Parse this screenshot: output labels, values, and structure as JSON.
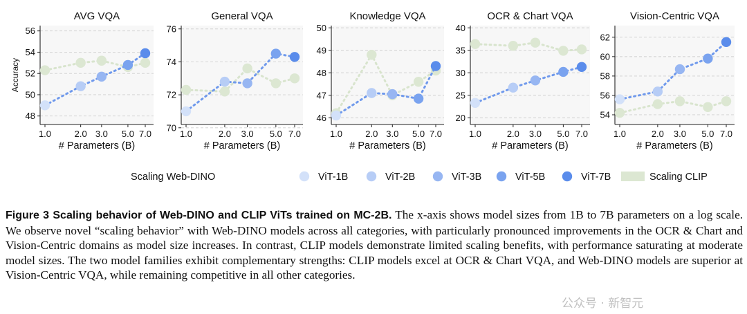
{
  "chart_data": [
    {
      "type": "scatter",
      "title": "AVG VQA",
      "xlabel": "# Parameters (B)",
      "ylabel": "Accuracy",
      "xscale": "log",
      "xticks": [
        "1.0",
        "2.0",
        "3.0",
        "5.0",
        "7.0"
      ],
      "ylim": [
        47.2,
        56.5
      ],
      "yticks": [
        "48",
        "50",
        "52",
        "54",
        "56"
      ],
      "grid": true,
      "series": [
        {
          "name": "Scaling Web-DINO",
          "x": [
            1,
            2,
            3,
            5,
            7
          ],
          "values": [
            49.0,
            50.8,
            51.7,
            52.8,
            53.9
          ]
        },
        {
          "name": "Scaling CLIP",
          "x": [
            1,
            2,
            3,
            5,
            7
          ],
          "values": [
            52.3,
            53.0,
            53.2,
            52.6,
            53.0
          ]
        }
      ]
    },
    {
      "type": "scatter",
      "title": "General VQA",
      "xlabel": "# Parameters (B)",
      "ylabel": "",
      "xscale": "log",
      "xticks": [
        "1.0",
        "2.0",
        "3.0",
        "5.0",
        "7.0"
      ],
      "ylim": [
        70.2,
        76.2
      ],
      "yticks": [
        "70",
        "72",
        "74",
        "76"
      ],
      "grid": true,
      "series": [
        {
          "name": "Scaling Web-DINO",
          "x": [
            1,
            2,
            3,
            5,
            7
          ],
          "values": [
            71.0,
            72.8,
            72.7,
            74.5,
            74.3
          ]
        },
        {
          "name": "Scaling CLIP",
          "x": [
            1,
            2,
            3,
            5,
            7
          ],
          "values": [
            72.3,
            72.2,
            73.6,
            72.7,
            73.0
          ]
        }
      ]
    },
    {
      "type": "scatter",
      "title": "Knowledge VQA",
      "xlabel": "# Parameters (B)",
      "ylabel": "",
      "xscale": "log",
      "xticks": [
        "1.0",
        "2.0",
        "3.0",
        "5.0",
        "7.0"
      ],
      "ylim": [
        45.7,
        50.1
      ],
      "yticks": [
        "46",
        "47",
        "48",
        "49",
        "50"
      ],
      "grid": true,
      "series": [
        {
          "name": "Scaling Web-DINO",
          "x": [
            1,
            2,
            3,
            5,
            7
          ],
          "values": [
            46.1,
            47.1,
            47.05,
            46.85,
            48.3
          ]
        },
        {
          "name": "Scaling CLIP",
          "x": [
            1,
            2,
            3,
            5,
            7
          ],
          "values": [
            46.2,
            48.8,
            47.0,
            47.6,
            48.1
          ]
        }
      ]
    },
    {
      "type": "scatter",
      "title": "OCR & Chart VQA",
      "xlabel": "# Parameters (B)",
      "ylabel": "",
      "xscale": "log",
      "xticks": [
        "1.0",
        "2.0",
        "3.0",
        "5.0",
        "7.0"
      ],
      "ylim": [
        18.5,
        40.5
      ],
      "yticks": [
        "20",
        "25",
        "30",
        "35",
        "40"
      ],
      "grid": true,
      "series": [
        {
          "name": "Scaling Web-DINO",
          "x": [
            1,
            2,
            3,
            5,
            7
          ],
          "values": [
            23.3,
            26.7,
            28.3,
            30.2,
            31.3
          ]
        },
        {
          "name": "Scaling CLIP",
          "x": [
            1,
            2,
            3,
            5,
            7
          ],
          "values": [
            36.4,
            36.0,
            36.7,
            34.9,
            35.2
          ]
        }
      ]
    },
    {
      "type": "scatter",
      "title": "Vision-Centric VQA",
      "xlabel": "# Parameters (B)",
      "ylabel": "",
      "xscale": "log",
      "xticks": [
        "1.0",
        "2.0",
        "3.0",
        "5.0",
        "7.0"
      ],
      "ylim": [
        53.0,
        63.2
      ],
      "yticks": [
        "54",
        "56",
        "58",
        "60",
        "62"
      ],
      "grid": true,
      "series": [
        {
          "name": "Scaling Web-DINO",
          "x": [
            1,
            2,
            3,
            5,
            7
          ],
          "values": [
            55.6,
            56.4,
            58.7,
            59.8,
            61.5
          ]
        },
        {
          "name": "Scaling CLIP",
          "x": [
            1,
            2,
            3,
            5,
            7
          ],
          "values": [
            54.2,
            55.1,
            55.4,
            54.8,
            55.4
          ]
        }
      ]
    }
  ],
  "legend": {
    "title": "Scaling Web-DINO",
    "items": [
      {
        "label": "ViT-1B",
        "color": "#d3e1f9"
      },
      {
        "label": "ViT-2B",
        "color": "#b7cdf6"
      },
      {
        "label": "ViT-3B",
        "color": "#97b6f2"
      },
      {
        "label": "ViT-5B",
        "color": "#7aa3ef"
      },
      {
        "label": "ViT-7B",
        "color": "#5a8ceb"
      },
      {
        "label": "Scaling CLIP",
        "color": "#dce7d2"
      }
    ]
  },
  "colors": {
    "dino_line": "#6f99ec",
    "clip_line": "#d8e4cd",
    "clip_marker": "#dce7d2",
    "dino_markers": [
      "#d3e1f9",
      "#b7cdf6",
      "#97b6f2",
      "#7aa3ef",
      "#5a8ceb"
    ],
    "panel_background": "#f7f7f7",
    "grid": "#cfcfcf"
  },
  "caption": {
    "label": "Figure 3  Scaling behavior of Web-DINO and CLIP ViTs trained on MC-2B.",
    "text": " The x-axis shows model sizes from 1B to 7B parameters on a log scale. We observe novel “scaling behavior” with Web-DINO models across all categories, with particularly pronounced improvements in the OCR & Chart and Vision-Centric domains as model size increases. In contrast, CLIP models demonstrate limited scaling benefits, with performance saturating at moderate model sizes. The two model families exhibit complementary strengths: CLIP models excel at OCR & Chart VQA, and Web-DINO models are superior at Vision-Centric VQA, while remaining competitive in all other categories."
  },
  "watermark": "公众号 · 新智元"
}
